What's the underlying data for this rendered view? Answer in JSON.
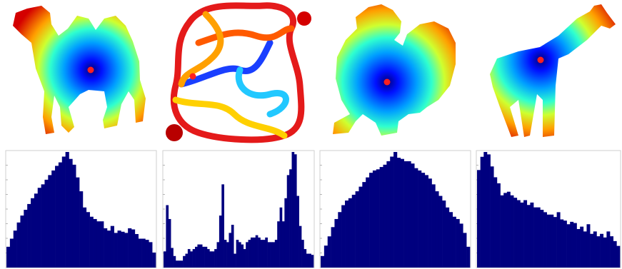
{
  "colors": {
    "bar": "#00007f",
    "frame": "#000000",
    "source_point": "#ff1f1f"
  },
  "colormap": "jet",
  "chart_data": [
    {
      "type": "bar",
      "shape": "camel",
      "xlim": [
        0,
        43
      ],
      "values": [
        18,
        25,
        32,
        39,
        45,
        50,
        55,
        60,
        64,
        69,
        72,
        76,
        80,
        84,
        88,
        91,
        96,
        100,
        94,
        89,
        78,
        66,
        52,
        48,
        44,
        42,
        40,
        40,
        34,
        32,
        36,
        30,
        32,
        31,
        30,
        34,
        33,
        29,
        25,
        25,
        24,
        22,
        13
      ]
    },
    {
      "type": "bar",
      "shape": "maze",
      "xlim": [
        0,
        43
      ],
      "values": [
        14,
        54,
        42,
        17,
        10,
        6,
        6,
        6,
        10,
        12,
        16,
        14,
        16,
        18,
        20,
        20,
        18,
        18,
        16,
        14,
        14,
        16,
        22,
        45,
        72,
        24,
        22,
        30,
        37,
        12,
        24,
        22,
        20,
        16,
        22,
        24,
        26,
        26,
        28,
        26,
        24,
        24,
        26,
        22,
        22,
        22,
        24,
        40,
        52,
        40,
        60,
        80,
        85,
        100,
        98,
        62,
        36,
        24,
        16,
        12,
        12,
        11
      ]
    },
    {
      "type": "bar",
      "shape": "rooster",
      "xlim": [
        0,
        43
      ],
      "values": [
        10,
        19,
        27,
        35,
        42,
        48,
        54,
        58,
        60,
        63,
        66,
        70,
        74,
        78,
        82,
        84,
        85,
        87,
        89,
        92,
        96,
        100,
        95,
        94,
        92,
        92,
        90,
        86,
        84,
        82,
        80,
        77,
        72,
        66,
        62,
        58,
        52,
        48,
        44,
        42,
        38,
        30,
        18
      ]
    },
    {
      "type": "bar",
      "shape": "giraffe",
      "xlim": [
        0,
        43
      ],
      "values": [
        81,
        92,
        96,
        94,
        84,
        75,
        70,
        60,
        62,
        63,
        60,
        58,
        56,
        54,
        56,
        52,
        54,
        50,
        50,
        48,
        46,
        44,
        44,
        42,
        46,
        40,
        39,
        36,
        38,
        37,
        32,
        34,
        30,
        36,
        28,
        30,
        26,
        28,
        25,
        30,
        26,
        22,
        18
      ]
    }
  ]
}
